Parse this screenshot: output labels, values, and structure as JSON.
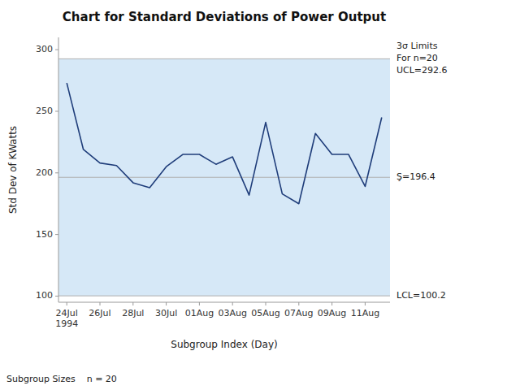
{
  "chart_data": {
    "type": "line",
    "title": "Chart for Standard Deviations of Power Output",
    "x_label": "Subgroup Index (Day)",
    "y_label": "Std Dev of KWatts",
    "footnote": "Subgroup Sizes    n = 20",
    "categories": [
      "24Jul\n1994",
      null,
      "26Jul",
      null,
      "28Jul",
      null,
      "30Jul",
      null,
      "01Aug",
      null,
      "03Aug",
      null,
      "05Aug",
      null,
      "07Aug",
      null,
      "09Aug",
      null,
      "11Aug",
      null
    ],
    "values": [
      273,
      219,
      208,
      206,
      192,
      188,
      205,
      215,
      215,
      207,
      213,
      182,
      241,
      183,
      175,
      232,
      215,
      215,
      189,
      245
    ],
    "color": "#1f3d7a",
    "ylim": [
      95,
      310
    ],
    "yticks": [
      100,
      150,
      200,
      250,
      300
    ],
    "grid": false,
    "band": {
      "from": 100.2,
      "to": 292.6,
      "color": "#d6e8f7"
    },
    "reference_lines": [
      {
        "value": 292.6,
        "label": "3σ Limits\nFor n=20\nUCL=292.6",
        "color": "#b0b0b0"
      },
      {
        "value": 196.4,
        "label": "Ş=196.4",
        "color": "#b0b0b0"
      },
      {
        "value": 100.2,
        "label": "LCL=100.2",
        "color": "#b0b0b0"
      }
    ]
  }
}
